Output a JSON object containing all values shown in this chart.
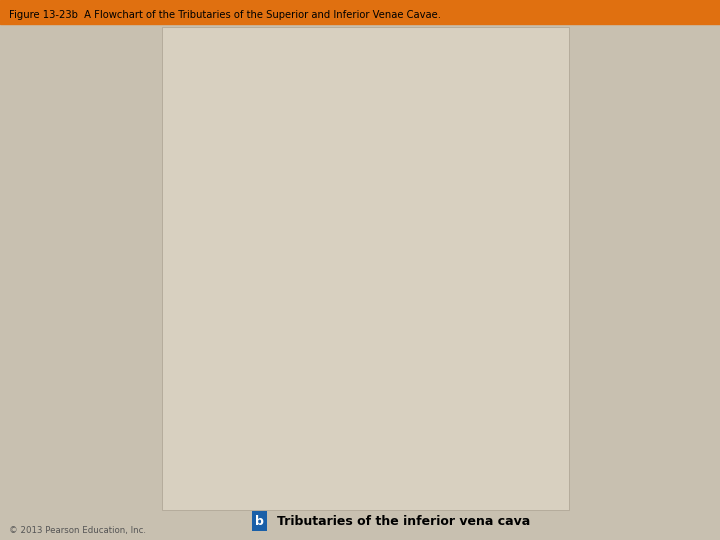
{
  "title": "Figure 13-23b  A Flowchart of the Tributaries of the Superior and Inferior Venae Cavae.",
  "bg_color": "#c8c0b0",
  "panel_bg": "#d8d0c0",
  "header_bg": "#e07010",
  "box_blue": "#7ab8d4",
  "box_blue2": "#a8cce0",
  "box_white": "#ffffff",
  "arrow_color": "#888888",
  "cloud_color": "#4aa8cc",
  "footer_text": "Tributaries of the inferior vena cava",
  "footer_label": "b",
  "copyright": "© 2013 Pearson Education, Inc."
}
